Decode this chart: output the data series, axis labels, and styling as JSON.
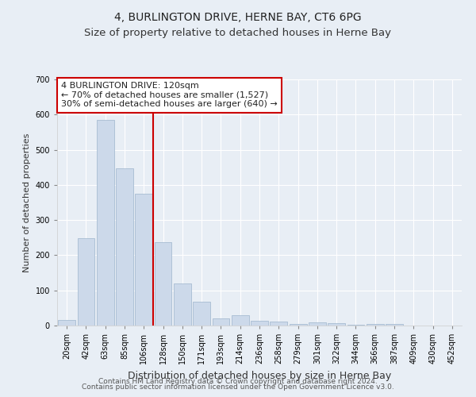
{
  "title": "4, BURLINGTON DRIVE, HERNE BAY, CT6 6PG",
  "subtitle": "Size of property relative to detached houses in Herne Bay",
  "xlabel": "Distribution of detached houses by size in Herne Bay",
  "ylabel": "Number of detached properties",
  "categories": [
    "20sqm",
    "42sqm",
    "63sqm",
    "85sqm",
    "106sqm",
    "128sqm",
    "150sqm",
    "171sqm",
    "193sqm",
    "214sqm",
    "236sqm",
    "258sqm",
    "279sqm",
    "301sqm",
    "322sqm",
    "344sqm",
    "366sqm",
    "387sqm",
    "409sqm",
    "430sqm",
    "452sqm"
  ],
  "values": [
    15,
    248,
    585,
    448,
    375,
    238,
    120,
    68,
    20,
    30,
    13,
    12,
    5,
    8,
    7,
    2,
    5,
    4,
    1,
    1,
    0
  ],
  "bar_color": "#ccd9ea",
  "bar_edge_color": "#9db4cc",
  "vline_color": "#cc0000",
  "annotation_text": "4 BURLINGTON DRIVE: 120sqm\n← 70% of detached houses are smaller (1,527)\n30% of semi-detached houses are larger (640) →",
  "annotation_box_color": "#ffffff",
  "annotation_box_edge_color": "#cc0000",
  "background_color": "#e8eef5",
  "grid_color": "#ffffff",
  "ylim": [
    0,
    700
  ],
  "yticks": [
    0,
    100,
    200,
    300,
    400,
    500,
    600,
    700
  ],
  "footer_line1": "Contains HM Land Registry data © Crown copyright and database right 2024.",
  "footer_line2": "Contains public sector information licensed under the Open Government Licence v3.0.",
  "title_fontsize": 10,
  "subtitle_fontsize": 9.5,
  "xlabel_fontsize": 9,
  "ylabel_fontsize": 8,
  "tick_fontsize": 7,
  "annotation_fontsize": 8,
  "footer_fontsize": 6.5
}
